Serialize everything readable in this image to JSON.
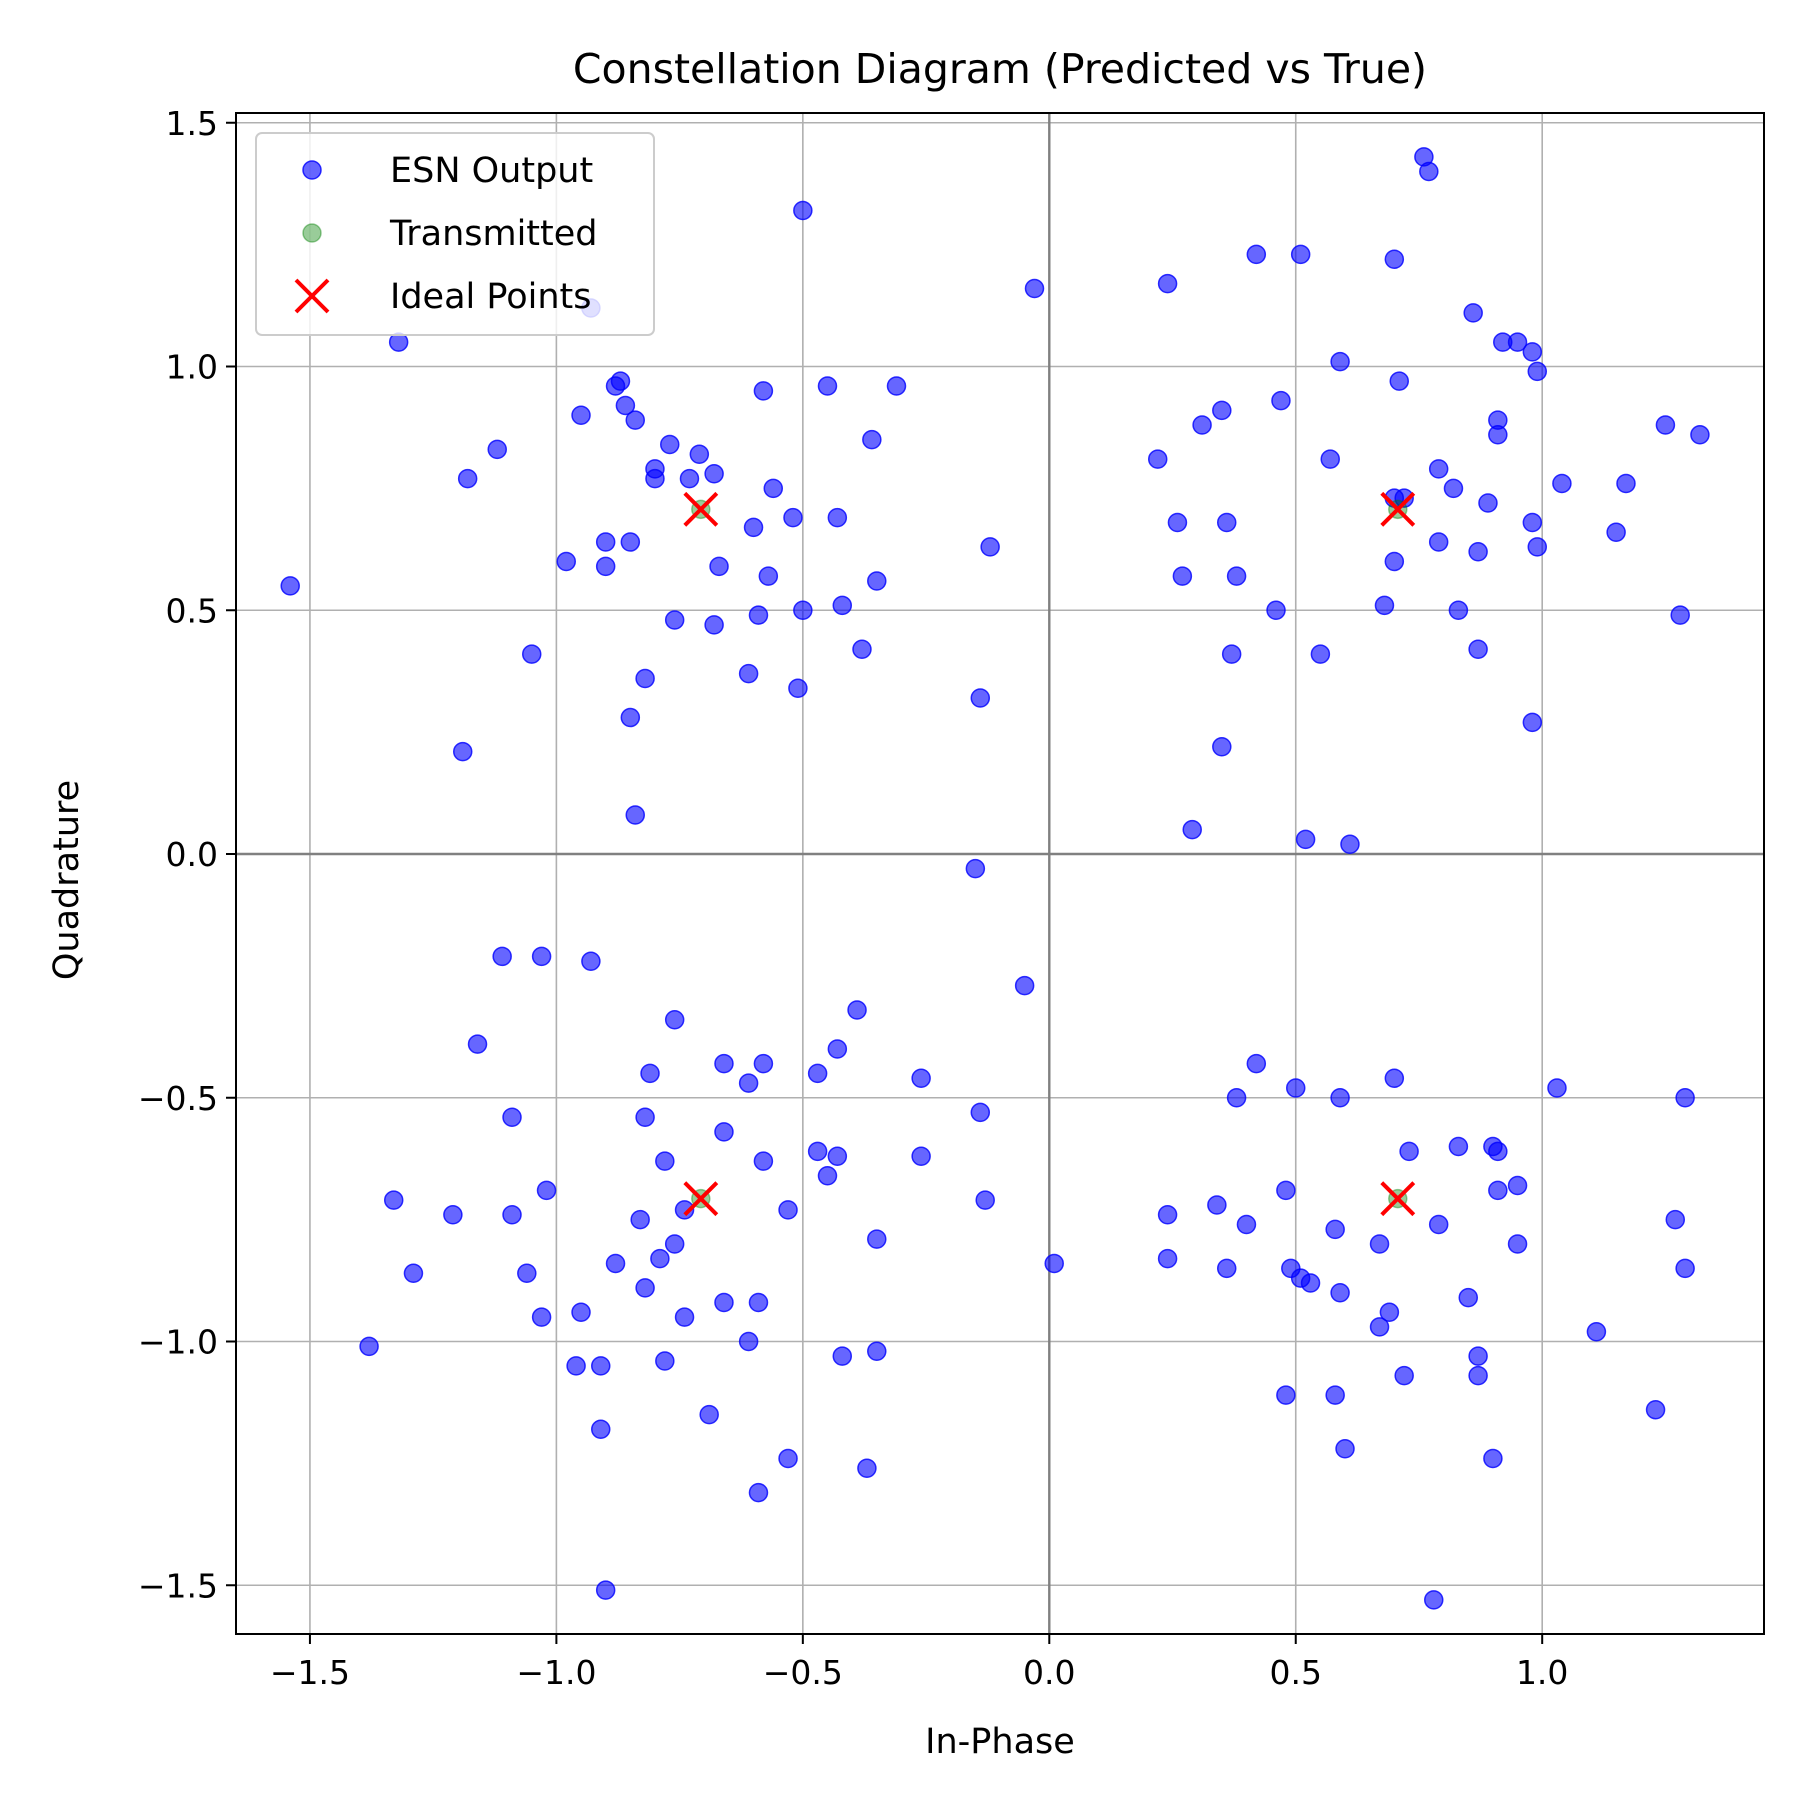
{
  "chart_data": {
    "type": "scatter",
    "title": "Constellation Diagram (Predicted vs True)",
    "xlabel": "In-Phase",
    "ylabel": "Quadrature",
    "xlim": [
      -1.65,
      1.45
    ],
    "ylim": [
      -1.6,
      1.52
    ],
    "xticks": [
      -1.5,
      -1.0,
      -0.5,
      0.0,
      0.5,
      1.0
    ],
    "yticks": [
      -1.5,
      -1.0,
      -0.5,
      0.0,
      0.5,
      1.0,
      1.5
    ],
    "xtick_labels": [
      "−1.5",
      "−1.0",
      "−0.5",
      "0.0",
      "0.5",
      "1.0"
    ],
    "ytick_labels": [
      "−1.5",
      "−1.0",
      "−0.5",
      "0.0",
      "0.5",
      "1.0",
      "1.5"
    ],
    "grid": true,
    "legend_position": "top-left",
    "series": [
      {
        "name": "ESN Output",
        "marker": "circle",
        "color": "#0000ff",
        "points": [
          [
            -1.54,
            0.55
          ],
          [
            -1.32,
            1.05
          ],
          [
            -1.18,
            0.77
          ],
          [
            -1.12,
            0.83
          ],
          [
            -1.05,
            0.41
          ],
          [
            -1.19,
            0.21
          ],
          [
            -0.93,
            1.12
          ],
          [
            -0.98,
            0.6
          ],
          [
            -0.9,
            0.64
          ],
          [
            -0.9,
            0.59
          ],
          [
            -0.95,
            0.9
          ],
          [
            -0.88,
            0.96
          ],
          [
            -0.87,
            0.97
          ],
          [
            -0.86,
            0.92
          ],
          [
            -0.84,
            0.89
          ],
          [
            -0.77,
            0.84
          ],
          [
            -0.8,
            0.79
          ],
          [
            -0.8,
            0.77
          ],
          [
            -0.73,
            0.77
          ],
          [
            -0.71,
            0.82
          ],
          [
            -0.68,
            0.78
          ],
          [
            -0.85,
            0.64
          ],
          [
            -0.76,
            0.48
          ],
          [
            -0.68,
            0.47
          ],
          [
            -0.67,
            0.59
          ],
          [
            -0.6,
            0.67
          ],
          [
            -0.57,
            0.57
          ],
          [
            -0.58,
            0.95
          ],
          [
            -0.56,
            0.75
          ],
          [
            -0.52,
            0.69
          ],
          [
            -0.5,
            0.5
          ],
          [
            -0.45,
            0.96
          ],
          [
            -0.43,
            0.69
          ],
          [
            -0.42,
            0.51
          ],
          [
            -0.36,
            0.85
          ],
          [
            -0.31,
            0.96
          ],
          [
            -0.35,
            0.56
          ],
          [
            -0.38,
            0.42
          ],
          [
            -0.5,
            1.32
          ],
          [
            -0.59,
            0.49
          ],
          [
            -0.61,
            0.37
          ],
          [
            -0.51,
            0.34
          ],
          [
            -0.82,
            0.36
          ],
          [
            -0.85,
            0.28
          ],
          [
            -0.84,
            0.08
          ],
          [
            -0.14,
            0.32
          ],
          [
            -0.12,
            0.63
          ],
          [
            -0.03,
            1.16
          ],
          [
            -0.15,
            -0.03
          ],
          [
            -1.11,
            -0.21
          ],
          [
            -1.03,
            -0.21
          ],
          [
            -0.93,
            -0.22
          ],
          [
            -0.76,
            -0.34
          ],
          [
            -1.16,
            -0.39
          ],
          [
            -1.09,
            -0.54
          ],
          [
            -0.81,
            -0.45
          ],
          [
            -0.82,
            -0.54
          ],
          [
            -0.78,
            -0.63
          ],
          [
            -0.66,
            -0.43
          ],
          [
            -0.58,
            -0.43
          ],
          [
            -0.61,
            -0.47
          ],
          [
            -0.66,
            -0.57
          ],
          [
            -0.58,
            -0.63
          ],
          [
            -0.47,
            -0.45
          ],
          [
            -0.43,
            -0.4
          ],
          [
            -0.39,
            -0.32
          ],
          [
            -0.47,
            -0.61
          ],
          [
            -0.43,
            -0.62
          ],
          [
            -0.45,
            -0.66
          ],
          [
            -0.26,
            -0.46
          ],
          [
            -0.26,
            -0.62
          ],
          [
            -0.14,
            -0.53
          ],
          [
            -0.05,
            -0.27
          ],
          [
            -1.33,
            -0.71
          ],
          [
            -1.21,
            -0.74
          ],
          [
            -1.09,
            -0.74
          ],
          [
            -1.02,
            -0.69
          ],
          [
            -1.29,
            -0.86
          ],
          [
            -1.06,
            -0.86
          ],
          [
            -0.83,
            -0.75
          ],
          [
            -0.74,
            -0.73
          ],
          [
            -0.76,
            -0.8
          ],
          [
            -0.79,
            -0.83
          ],
          [
            -0.88,
            -0.84
          ],
          [
            -0.82,
            -0.89
          ],
          [
            -0.74,
            -0.95
          ],
          [
            -0.66,
            -0.92
          ],
          [
            -0.59,
            -0.92
          ],
          [
            -0.53,
            -0.73
          ],
          [
            -0.35,
            -0.79
          ],
          [
            -0.13,
            -0.71
          ],
          [
            0.01,
            -0.84
          ],
          [
            -1.03,
            -0.95
          ],
          [
            -0.95,
            -0.94
          ],
          [
            -0.96,
            -1.05
          ],
          [
            -0.91,
            -1.05
          ],
          [
            -1.38,
            -1.01
          ],
          [
            -0.78,
            -1.04
          ],
          [
            -0.61,
            -1.0
          ],
          [
            -0.42,
            -1.03
          ],
          [
            -0.35,
            -1.02
          ],
          [
            -0.69,
            -1.15
          ],
          [
            -0.91,
            -1.18
          ],
          [
            -0.53,
            -1.24
          ],
          [
            -0.37,
            -1.26
          ],
          [
            -0.59,
            -1.31
          ],
          [
            -0.9,
            -1.51
          ],
          [
            0.24,
            1.17
          ],
          [
            0.42,
            1.23
          ],
          [
            0.51,
            1.23
          ],
          [
            0.7,
            1.22
          ],
          [
            0.76,
            1.43
          ],
          [
            0.77,
            1.4
          ],
          [
            0.86,
            1.11
          ],
          [
            0.92,
            1.05
          ],
          [
            0.95,
            1.05
          ],
          [
            0.98,
            1.03
          ],
          [
            0.99,
            0.99
          ],
          [
            0.59,
            1.01
          ],
          [
            0.71,
            0.97
          ],
          [
            0.47,
            0.93
          ],
          [
            0.35,
            0.91
          ],
          [
            0.31,
            0.88
          ],
          [
            0.22,
            0.81
          ],
          [
            0.57,
            0.81
          ],
          [
            0.7,
            0.73
          ],
          [
            0.72,
            0.73
          ],
          [
            0.79,
            0.79
          ],
          [
            0.82,
            0.75
          ],
          [
            0.89,
            0.72
          ],
          [
            0.91,
            0.89
          ],
          [
            0.91,
            0.86
          ],
          [
            0.98,
            0.68
          ],
          [
            0.99,
            0.63
          ],
          [
            1.04,
            0.76
          ],
          [
            1.17,
            0.76
          ],
          [
            1.25,
            0.88
          ],
          [
            1.32,
            0.86
          ],
          [
            1.15,
            0.66
          ],
          [
            1.28,
            0.49
          ],
          [
            0.26,
            0.68
          ],
          [
            0.36,
            0.68
          ],
          [
            0.27,
            0.57
          ],
          [
            0.38,
            0.57
          ],
          [
            0.46,
            0.5
          ],
          [
            0.37,
            0.41
          ],
          [
            0.55,
            0.41
          ],
          [
            0.68,
            0.51
          ],
          [
            0.7,
            0.6
          ],
          [
            0.79,
            0.64
          ],
          [
            0.83,
            0.5
          ],
          [
            0.87,
            0.62
          ],
          [
            0.87,
            0.42
          ],
          [
            0.98,
            0.27
          ],
          [
            0.35,
            0.22
          ],
          [
            0.29,
            0.05
          ],
          [
            0.52,
            0.03
          ],
          [
            0.61,
            0.02
          ],
          [
            0.42,
            -0.43
          ],
          [
            0.38,
            -0.5
          ],
          [
            0.5,
            -0.48
          ],
          [
            0.59,
            -0.5
          ],
          [
            0.7,
            -0.46
          ],
          [
            0.83,
            -0.6
          ],
          [
            0.73,
            -0.61
          ],
          [
            0.9,
            -0.6
          ],
          [
            0.91,
            -0.61
          ],
          [
            0.91,
            -0.69
          ],
          [
            0.95,
            -0.68
          ],
          [
            1.03,
            -0.48
          ],
          [
            1.29,
            -0.5
          ],
          [
            0.24,
            -0.74
          ],
          [
            0.34,
            -0.72
          ],
          [
            0.4,
            -0.76
          ],
          [
            0.48,
            -0.69
          ],
          [
            0.58,
            -0.77
          ],
          [
            0.67,
            -0.8
          ],
          [
            0.79,
            -0.76
          ],
          [
            0.95,
            -0.8
          ],
          [
            1.27,
            -0.75
          ],
          [
            0.24,
            -0.83
          ],
          [
            0.36,
            -0.85
          ],
          [
            0.49,
            -0.85
          ],
          [
            0.51,
            -0.87
          ],
          [
            0.53,
            -0.88
          ],
          [
            0.59,
            -0.9
          ],
          [
            0.69,
            -0.94
          ],
          [
            0.67,
            -0.97
          ],
          [
            0.85,
            -0.91
          ],
          [
            1.29,
            -0.85
          ],
          [
            0.87,
            -1.03
          ],
          [
            0.87,
            -1.07
          ],
          [
            0.72,
            -1.07
          ],
          [
            1.11,
            -0.98
          ],
          [
            0.48,
            -1.11
          ],
          [
            0.58,
            -1.11
          ],
          [
            0.6,
            -1.22
          ],
          [
            0.9,
            -1.24
          ],
          [
            1.23,
            -1.14
          ],
          [
            0.78,
            -1.53
          ]
        ]
      },
      {
        "name": "Transmitted",
        "marker": "circle",
        "color": "#008000",
        "points": [
          [
            -0.707,
            0.707
          ],
          [
            0.707,
            0.707
          ],
          [
            -0.707,
            -0.707
          ],
          [
            0.707,
            -0.707
          ]
        ]
      },
      {
        "name": "Ideal Points",
        "marker": "x",
        "color": "#ff0000",
        "points": [
          [
            -0.707,
            0.707
          ],
          [
            0.707,
            0.707
          ],
          [
            -0.707,
            -0.707
          ],
          [
            0.707,
            -0.707
          ]
        ]
      }
    ]
  }
}
